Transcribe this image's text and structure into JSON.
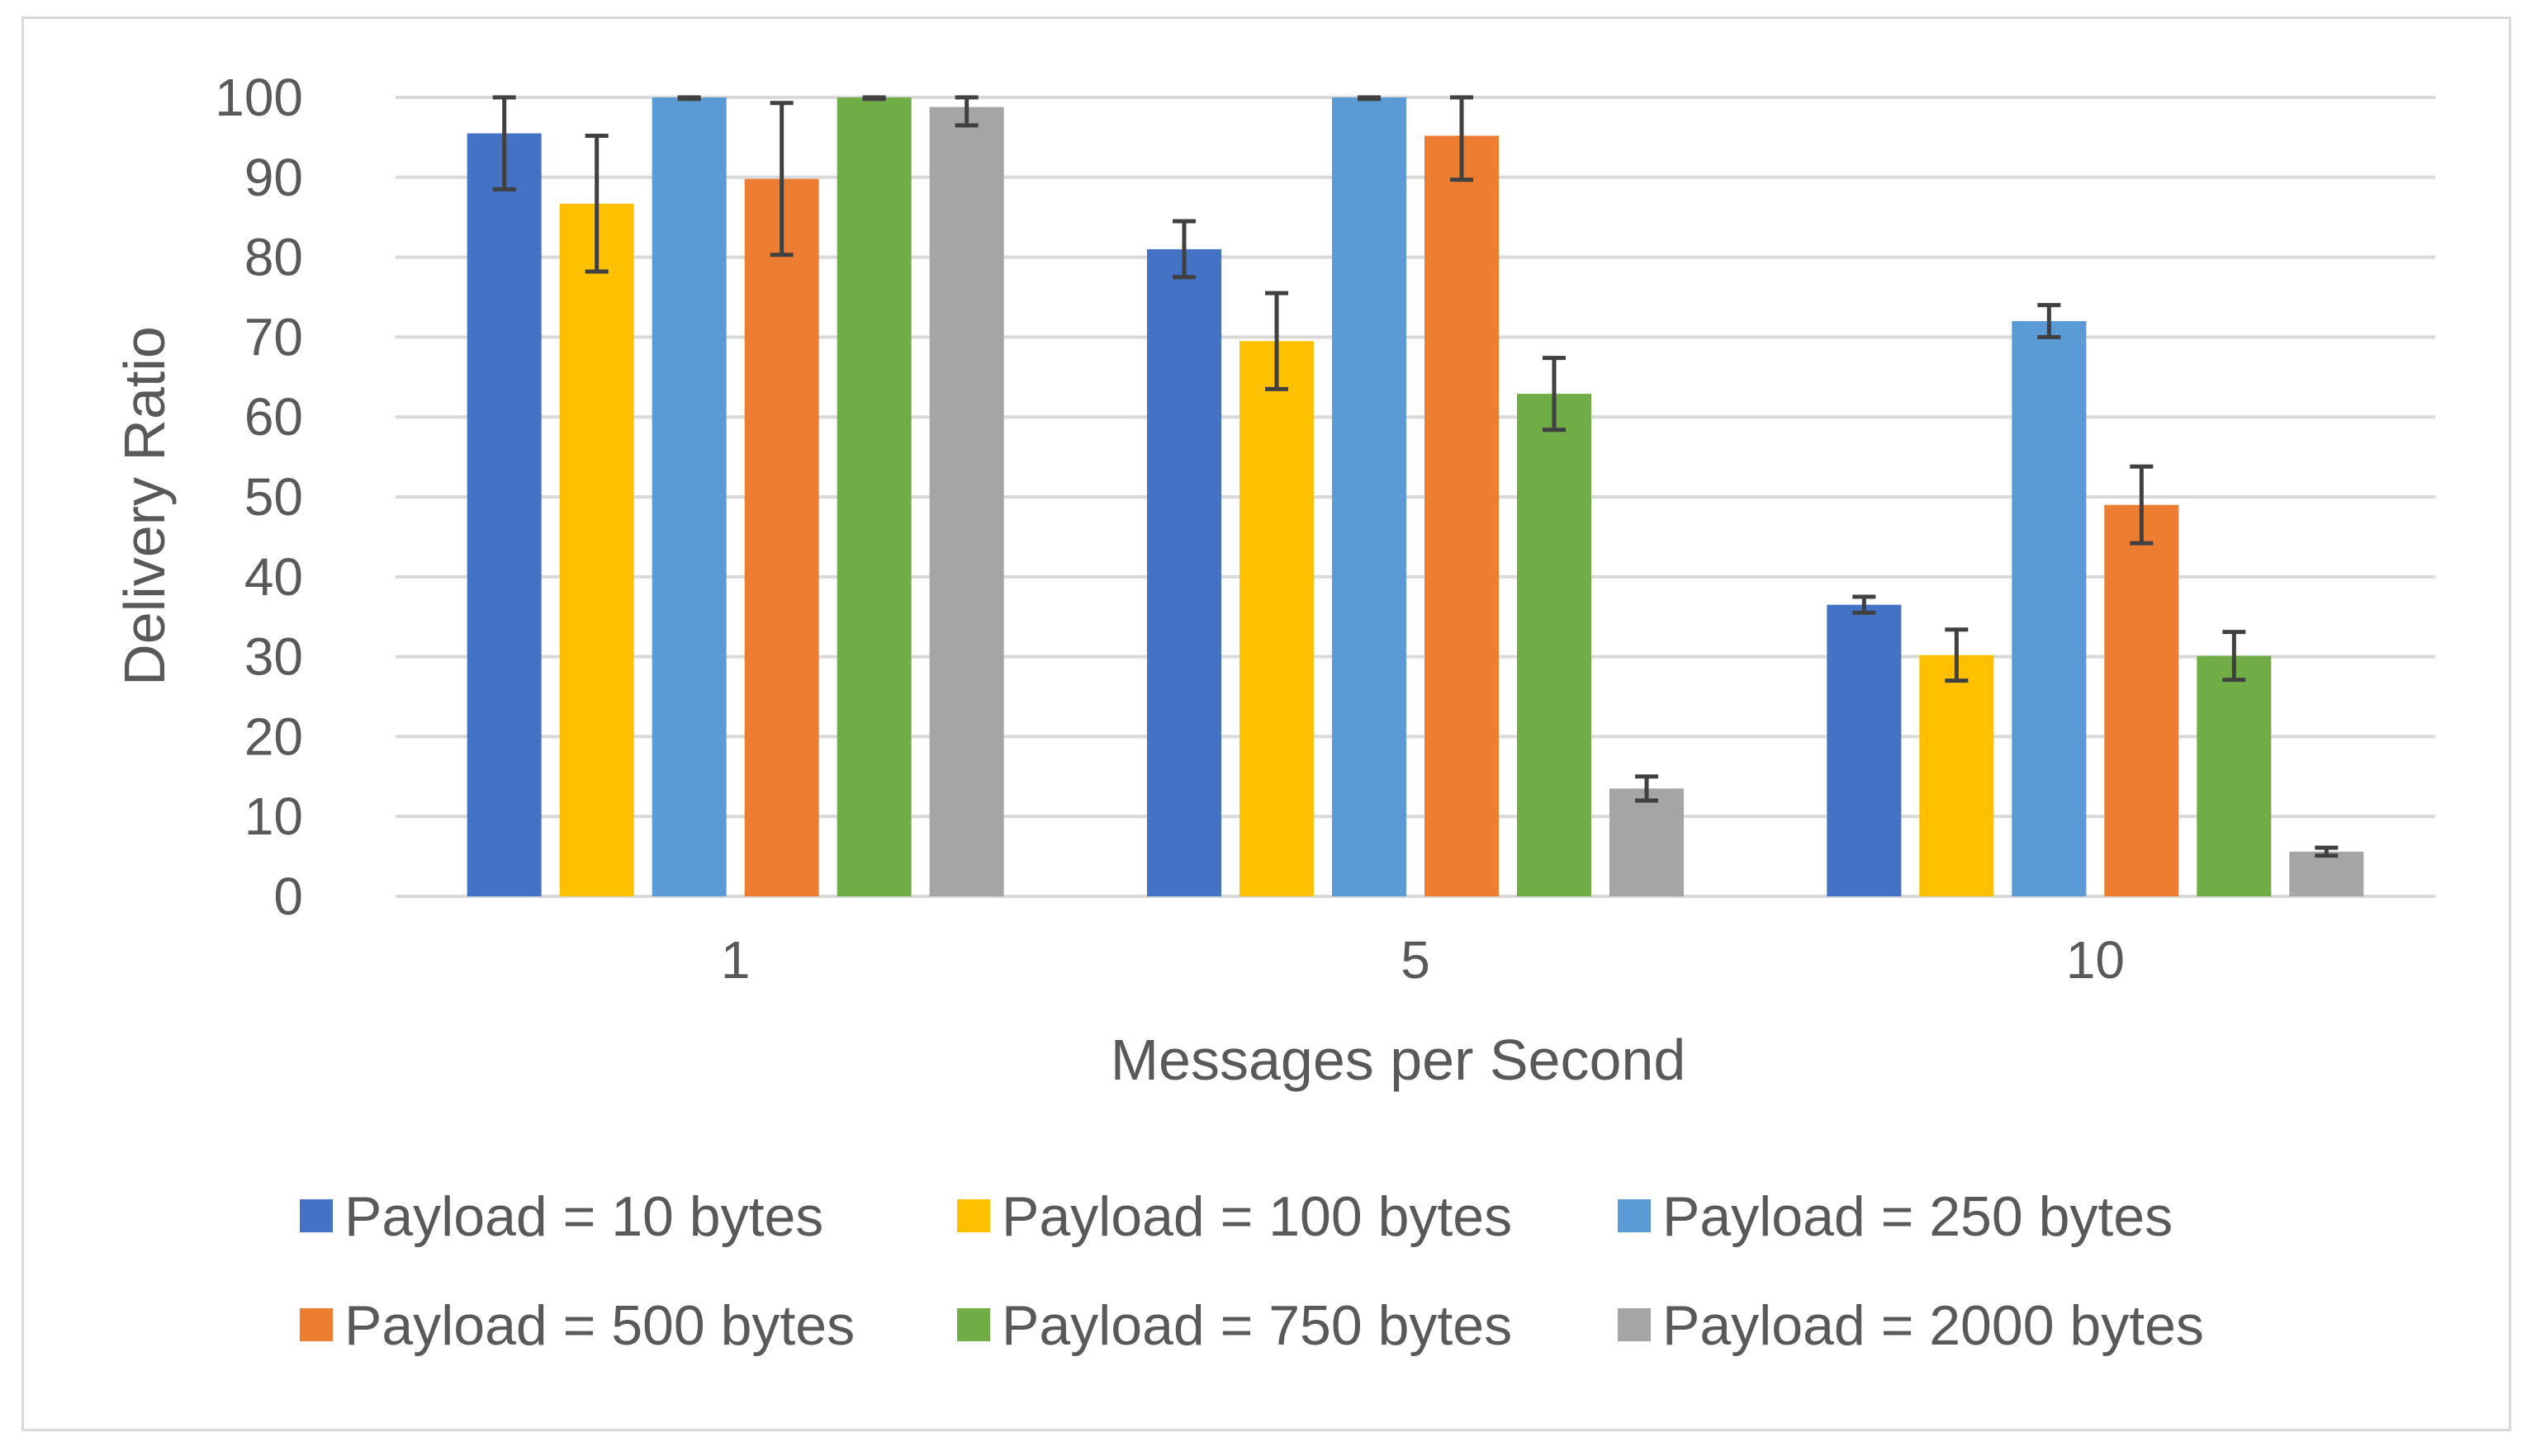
{
  "chart_data": {
    "type": "bar",
    "xlabel": "Messages per Second",
    "ylabel": "Delivery Ratio",
    "categories": [
      "1",
      "5",
      "10"
    ],
    "ylim": [
      0,
      100
    ],
    "yticks": [
      0,
      10,
      20,
      30,
      40,
      50,
      60,
      70,
      80,
      90,
      100
    ],
    "grid": true,
    "legend_position": "bottom",
    "series": [
      {
        "name": "Payload = 10 bytes",
        "color": "#4472c4",
        "values": [
          95.5,
          81,
          36.5
        ],
        "errors": [
          7,
          3.5,
          1
        ]
      },
      {
        "name": "Payload = 100 bytes",
        "color": "#ffc000",
        "values": [
          86.7,
          69.5,
          30.2
        ],
        "errors": [
          8.5,
          6,
          3.2
        ]
      },
      {
        "name": "Payload = 250 bytes",
        "color": "#5b9bd5",
        "values": [
          100,
          100,
          72
        ],
        "errors": [
          0.2,
          0.2,
          2
        ]
      },
      {
        "name": "Payload = 500 bytes",
        "color": "#ed7d31",
        "values": [
          89.8,
          95.2,
          49
        ],
        "errors": [
          9.5,
          5.5,
          4.8
        ]
      },
      {
        "name": "Payload = 750 bytes",
        "color": "#70ad47",
        "values": [
          100,
          62.9,
          30.1
        ],
        "errors": [
          0.2,
          4.5,
          3
        ]
      },
      {
        "name": "Payload = 2000 bytes",
        "color": "#a5a5a5",
        "values": [
          98.8,
          13.5,
          5.6
        ],
        "errors": [
          2.3,
          1.5,
          0.5
        ]
      }
    ]
  }
}
